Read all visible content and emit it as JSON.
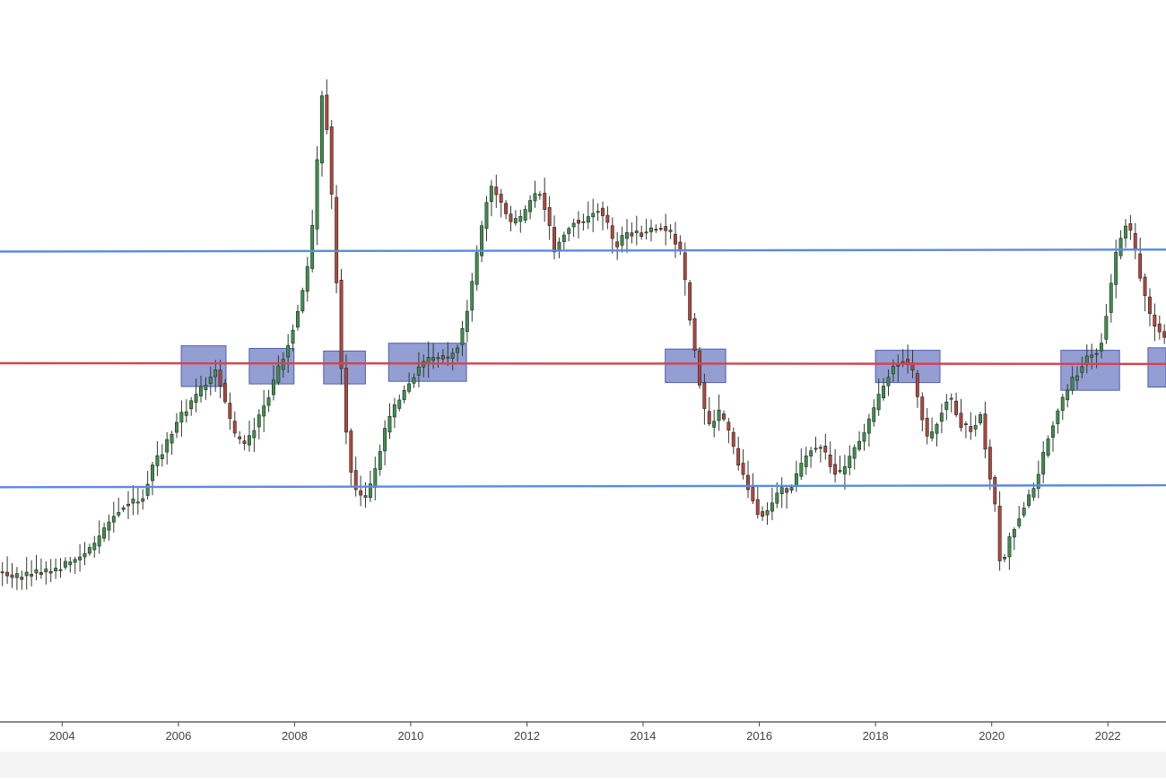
{
  "chart_data": {
    "type": "candlestick",
    "frequency": "monthly",
    "title": "",
    "xlabel": "",
    "ylabel": "",
    "x_ticks": [
      "2004",
      "2006",
      "2008",
      "2010",
      "2012",
      "2014",
      "2016",
      "2018",
      "2020",
      "2022"
    ],
    "x_range": [
      2002.93,
      2023.0
    ],
    "y_range": [
      0,
      100
    ],
    "y_axis_visible": false,
    "grid": false,
    "legend": "none",
    "colors": {
      "up_candle": "#3f8f4f",
      "down_candle": "#b5443e",
      "wick": "#2e3a2e",
      "support_resistance_line": "#5b8be0",
      "midline": "#d0454e",
      "zone_fill": "#6f7ec4",
      "zone_stroke": "#4f5fae",
      "axis": "#444444"
    },
    "horizontal_lines": [
      {
        "role": "resistance",
        "color": "#5b8be0",
        "start": {
          "x": 2002.93,
          "y": 66.6
        },
        "end": {
          "x": 2023.0,
          "y": 66.9
        }
      },
      {
        "role": "midline",
        "color": "#d0454e",
        "start": {
          "x": 2002.93,
          "y": 49.3
        },
        "end": {
          "x": 2023.0,
          "y": 49.2
        }
      },
      {
        "role": "support",
        "color": "#5b8be0",
        "start": {
          "x": 2002.93,
          "y": 30.1
        },
        "end": {
          "x": 2023.0,
          "y": 30.4
        }
      }
    ],
    "zones": [
      {
        "x0": 2006.05,
        "x1": 2006.82,
        "y0": 45.7,
        "y1": 52.0
      },
      {
        "x0": 2007.22,
        "x1": 2007.99,
        "y0": 46.1,
        "y1": 51.6
      },
      {
        "x0": 2008.5,
        "x1": 2009.22,
        "y0": 46.1,
        "y1": 51.2
      },
      {
        "x0": 2009.62,
        "x1": 2010.96,
        "y0": 46.5,
        "y1": 52.4
      },
      {
        "x0": 2014.38,
        "x1": 2015.42,
        "y0": 46.3,
        "y1": 51.5
      },
      {
        "x0": 2018.0,
        "x1": 2019.11,
        "y0": 46.3,
        "y1": 51.3
      },
      {
        "x0": 2021.19,
        "x1": 2022.2,
        "y0": 45.1,
        "y1": 51.3
      },
      {
        "x0": 2022.69,
        "x1": 2023.0,
        "y0": 45.6,
        "y1": 51.7
      }
    ],
    "anchors": [
      [
        2003.0,
        17.0
      ],
      [
        2003.2,
        16.0
      ],
      [
        2003.5,
        16.8
      ],
      [
        2003.9,
        17.2
      ],
      [
        2004.3,
        19.0
      ],
      [
        2004.6,
        21.0
      ],
      [
        2004.9,
        25.5
      ],
      [
        2005.1,
        27.5
      ],
      [
        2005.4,
        28.0
      ],
      [
        2005.6,
        33.5
      ],
      [
        2005.8,
        36.0
      ],
      [
        2006.0,
        40.0
      ],
      [
        2006.2,
        42.5
      ],
      [
        2006.5,
        46.0
      ],
      [
        2006.7,
        48.5
      ],
      [
        2006.85,
        43.0
      ],
      [
        2007.0,
        38.0
      ],
      [
        2007.2,
        36.5
      ],
      [
        2007.4,
        40.5
      ],
      [
        2007.6,
        44.5
      ],
      [
        2007.9,
        51.5
      ],
      [
        2008.1,
        57.5
      ],
      [
        2008.25,
        63.0
      ],
      [
        2008.4,
        74.0
      ],
      [
        2008.45,
        84.5
      ],
      [
        2008.52,
        91.5
      ],
      [
        2008.58,
        88.0
      ],
      [
        2008.66,
        78.0
      ],
      [
        2008.74,
        66.0
      ],
      [
        2008.85,
        48.0
      ],
      [
        2008.95,
        36.5
      ],
      [
        2009.05,
        30.5
      ],
      [
        2009.15,
        28.5
      ],
      [
        2009.3,
        28.5
      ],
      [
        2009.45,
        33.5
      ],
      [
        2009.65,
        40.5
      ],
      [
        2009.9,
        44.5
      ],
      [
        2010.2,
        49.0
      ],
      [
        2010.5,
        50.5
      ],
      [
        2010.7,
        50.0
      ],
      [
        2010.9,
        53.0
      ],
      [
        2011.05,
        59.0
      ],
      [
        2011.2,
        67.0
      ],
      [
        2011.4,
        77.0
      ],
      [
        2011.55,
        75.0
      ],
      [
        2011.75,
        71.0
      ],
      [
        2011.95,
        71.5
      ],
      [
        2012.1,
        74.5
      ],
      [
        2012.25,
        76.0
      ],
      [
        2012.4,
        72.0
      ],
      [
        2012.5,
        66.5
      ],
      [
        2012.65,
        69.0
      ],
      [
        2012.85,
        71.5
      ],
      [
        2013.0,
        71.0
      ],
      [
        2013.25,
        73.5
      ],
      [
        2013.4,
        71.5
      ],
      [
        2013.55,
        67.0
      ],
      [
        2013.75,
        69.5
      ],
      [
        2014.05,
        69.5
      ],
      [
        2014.35,
        70.5
      ],
      [
        2014.55,
        69.0
      ],
      [
        2014.7,
        66.0
      ],
      [
        2014.85,
        56.0
      ],
      [
        2015.0,
        47.0
      ],
      [
        2015.15,
        39.0
      ],
      [
        2015.35,
        41.5
      ],
      [
        2015.5,
        39.0
      ],
      [
        2015.65,
        34.5
      ],
      [
        2015.85,
        30.0
      ],
      [
        2016.05,
        25.5
      ],
      [
        2016.2,
        26.5
      ],
      [
        2016.4,
        30.0
      ],
      [
        2016.55,
        29.5
      ],
      [
        2016.75,
        33.0
      ],
      [
        2016.9,
        36.0
      ],
      [
        2017.1,
        36.5
      ],
      [
        2017.3,
        33.0
      ],
      [
        2017.45,
        32.0
      ],
      [
        2017.65,
        35.5
      ],
      [
        2017.85,
        38.5
      ],
      [
        2018.1,
        44.0
      ],
      [
        2018.3,
        48.5
      ],
      [
        2018.5,
        50.0
      ],
      [
        2018.65,
        49.0
      ],
      [
        2018.8,
        42.5
      ],
      [
        2018.95,
        37.0
      ],
      [
        2019.15,
        41.5
      ],
      [
        2019.3,
        44.5
      ],
      [
        2019.5,
        40.0
      ],
      [
        2019.7,
        39.0
      ],
      [
        2019.85,
        41.5
      ],
      [
        2019.95,
        35.0
      ],
      [
        2020.1,
        27.0
      ],
      [
        2020.2,
        17.0
      ],
      [
        2020.35,
        22.5
      ],
      [
        2020.55,
        26.5
      ],
      [
        2020.8,
        30.5
      ],
      [
        2021.0,
        37.5
      ],
      [
        2021.2,
        42.5
      ],
      [
        2021.45,
        47.0
      ],
      [
        2021.7,
        50.5
      ],
      [
        2021.9,
        51.5
      ],
      [
        2022.05,
        59.0
      ],
      [
        2022.2,
        67.0
      ],
      [
        2022.35,
        71.0
      ],
      [
        2022.45,
        69.0
      ],
      [
        2022.6,
        62.5
      ],
      [
        2022.75,
        57.0
      ],
      [
        2022.9,
        54.5
      ],
      [
        2023.0,
        53.5
      ]
    ]
  }
}
